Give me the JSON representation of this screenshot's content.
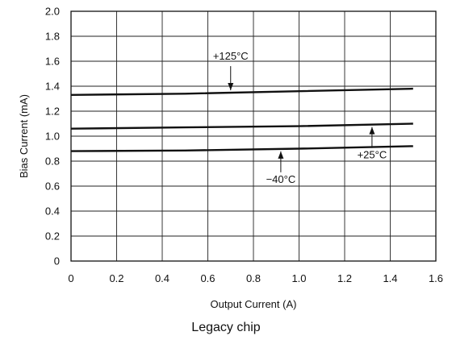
{
  "chart_data": {
    "type": "line",
    "title": "",
    "caption": "Legacy chip",
    "xlabel": "Output Current (A)",
    "ylabel": "Bias Current (mA)",
    "xlim": [
      0,
      1.6
    ],
    "ylim": [
      0,
      2.0
    ],
    "xticks": [
      "0",
      "0.2",
      "0.4",
      "0.6",
      "0.8",
      "1.0",
      "1.2",
      "1.4",
      "1.6"
    ],
    "yticks": [
      "0",
      "0.2",
      "0.4",
      "0.6",
      "0.8",
      "1.0",
      "1.2",
      "1.4",
      "1.6",
      "1.8",
      "2.0"
    ],
    "grid": true,
    "series": [
      {
        "name": "+125°C",
        "x": [
          0,
          0.5,
          1.0,
          1.5
        ],
        "y": [
          1.33,
          1.34,
          1.36,
          1.38
        ]
      },
      {
        "name": "+25°C",
        "x": [
          0,
          0.5,
          1.0,
          1.5
        ],
        "y": [
          1.06,
          1.07,
          1.08,
          1.1
        ]
      },
      {
        "name": "−40°C",
        "x": [
          0,
          0.5,
          1.0,
          1.5
        ],
        "y": [
          0.88,
          0.885,
          0.9,
          0.92
        ]
      }
    ],
    "annotations": [
      {
        "text": "+125°C",
        "series": 0,
        "at_x": 0.7,
        "direction": "down"
      },
      {
        "text": "−40°C",
        "series": 2,
        "at_x": 0.92,
        "direction": "up"
      },
      {
        "text": "+25°C",
        "series": 1,
        "at_x": 1.32,
        "direction": "up"
      }
    ]
  }
}
